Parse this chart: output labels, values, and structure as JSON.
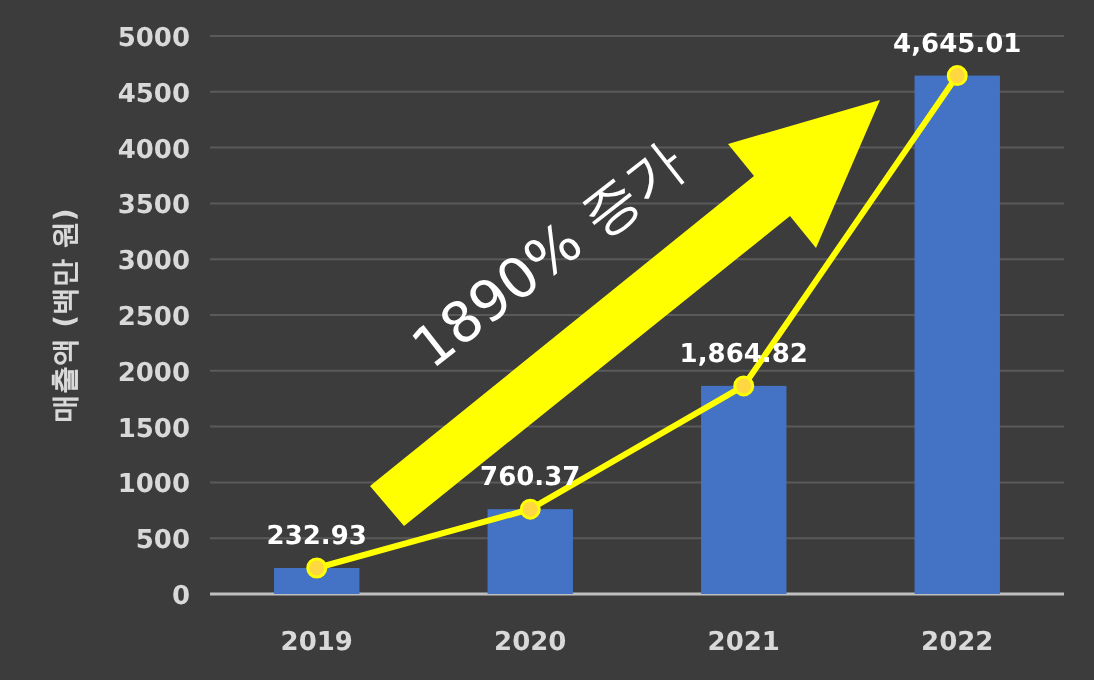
{
  "chart_data": {
    "type": "bar",
    "ylabel": "매출액 (백만 원)",
    "categories": [
      "2019",
      "2020",
      "2021",
      "2022"
    ],
    "series": [
      {
        "color": "#4472c4",
        "values": [
          232.93,
          760.37,
          1864.82,
          4645.01
        ],
        "value_labels": [
          "232.93",
          "760.37",
          "1,864.82",
          "4,645.01"
        ]
      },
      {
        "type": "line",
        "color": "#ffff00",
        "marker": "circle",
        "values": [
          232.93,
          760.37,
          1864.82,
          4645.01
        ]
      }
    ],
    "ylim": [
      0,
      5000
    ],
    "yticks": [
      0,
      500,
      1000,
      1500,
      2000,
      2500,
      3000,
      3500,
      4000,
      4500,
      5000
    ],
    "grid": "y",
    "annotations": [
      "1890% 증가"
    ]
  }
}
